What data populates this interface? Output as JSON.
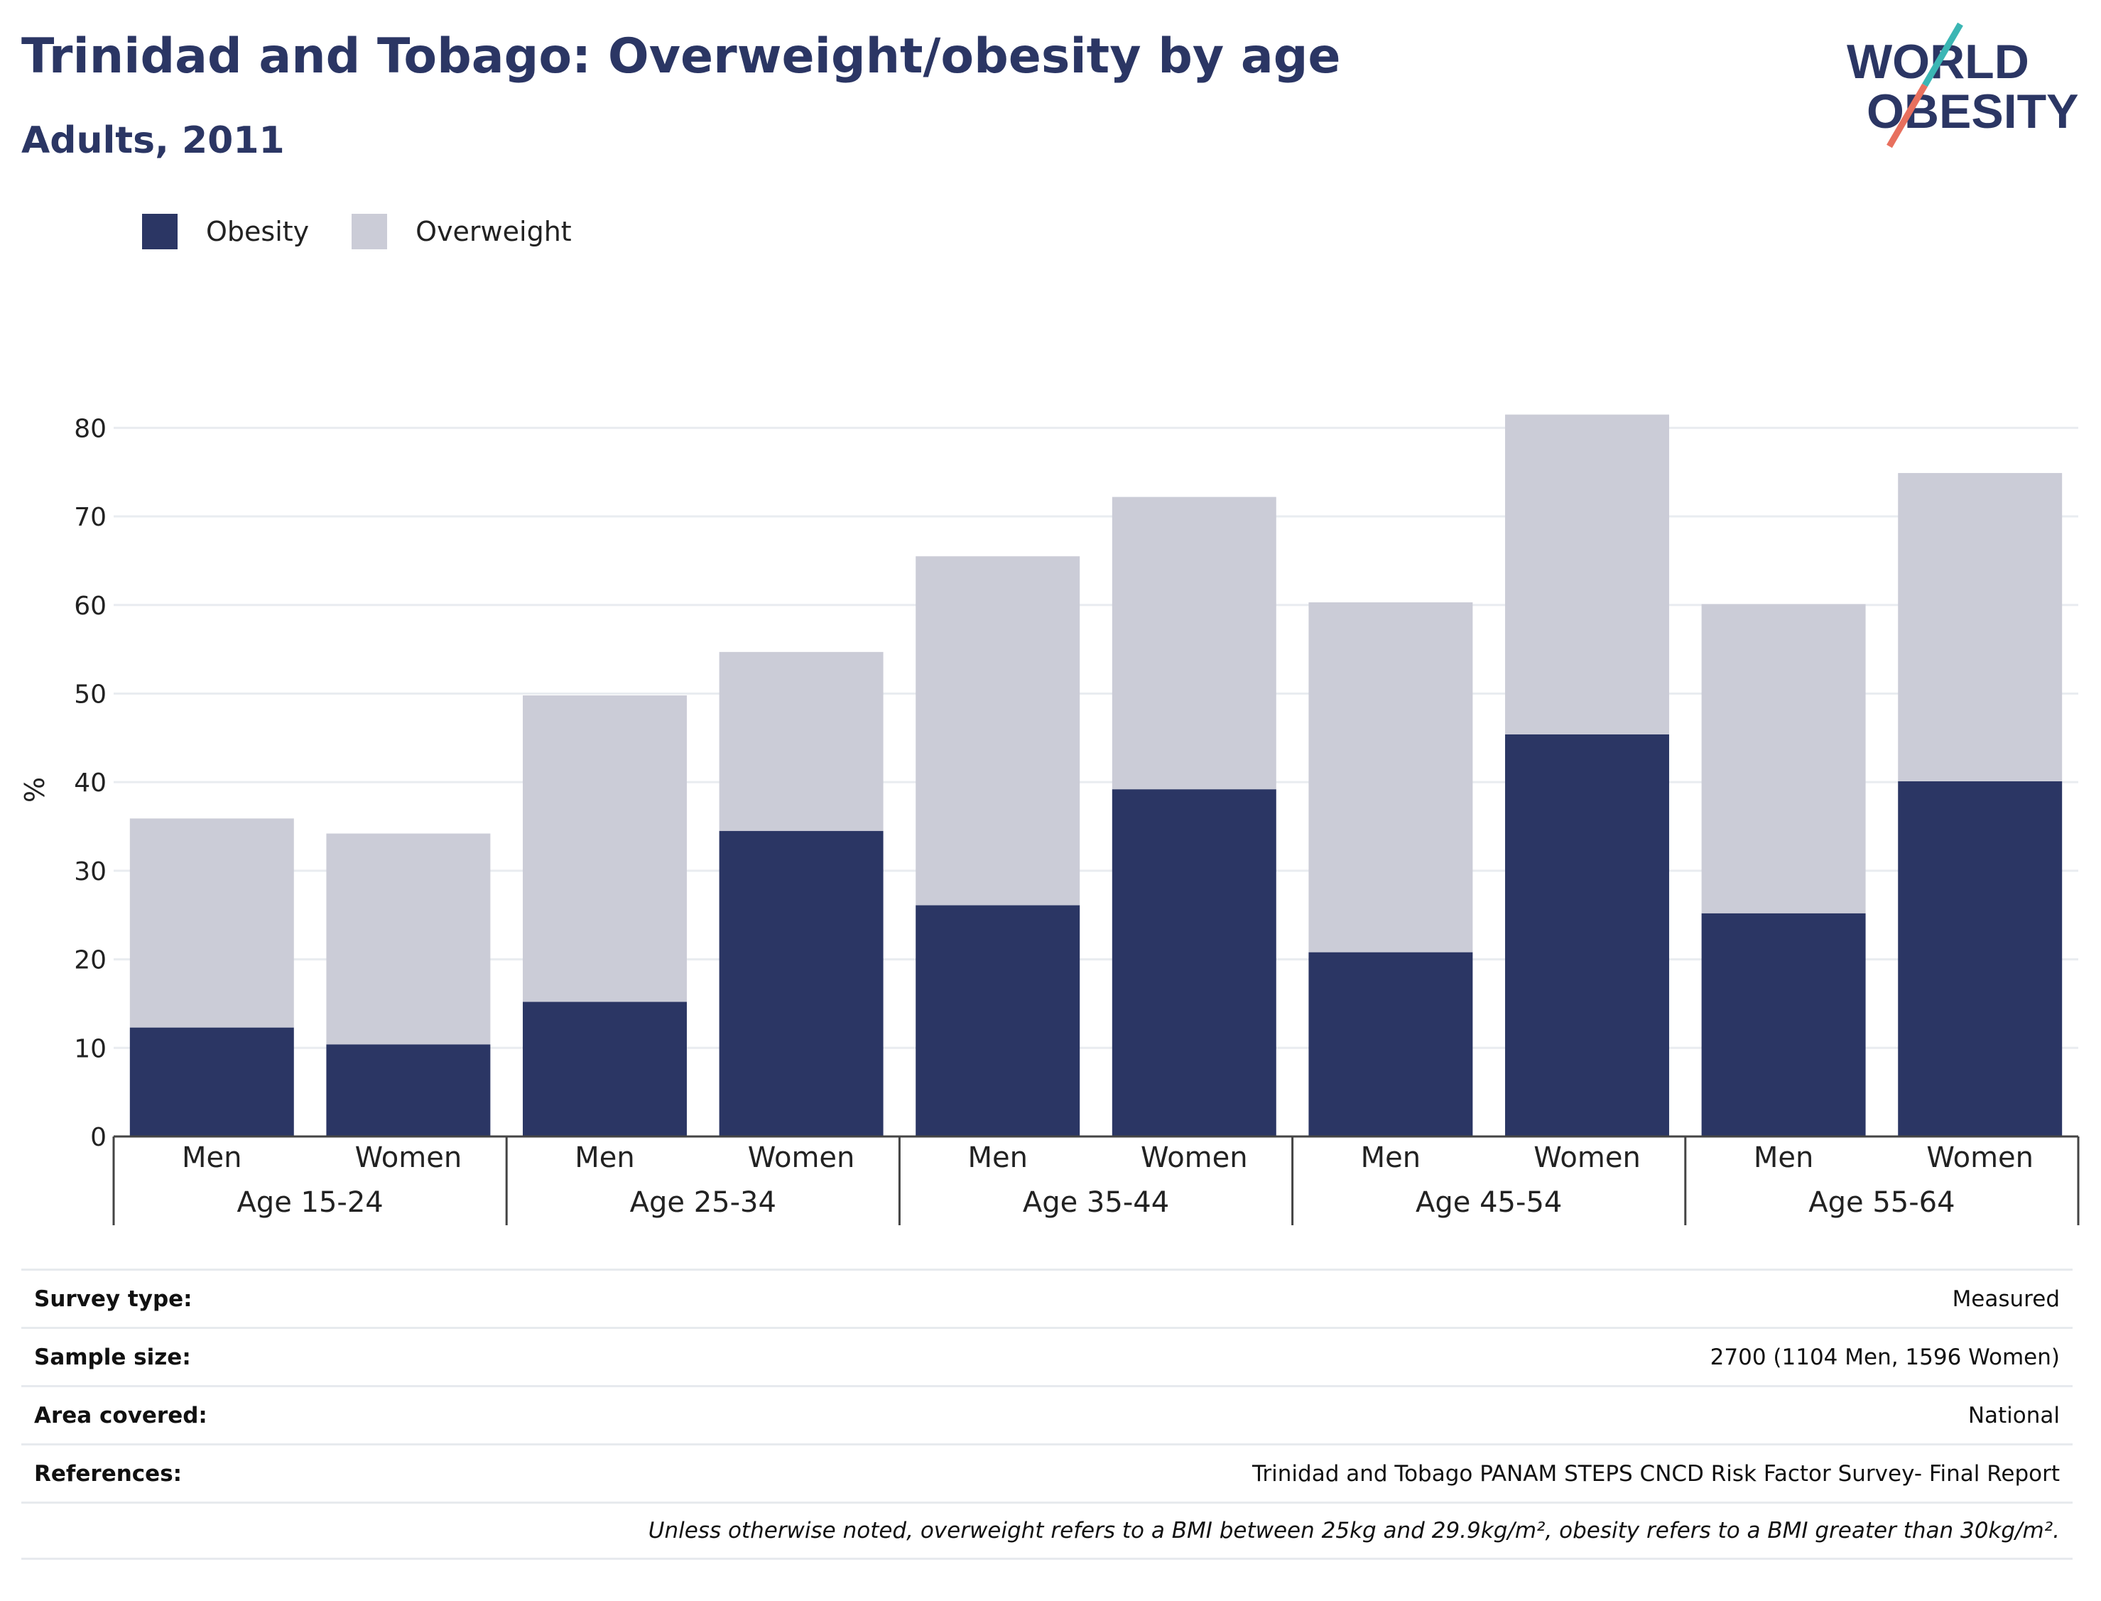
{
  "header": {
    "title": "Trinidad and Tobago: Overweight/obesity by age",
    "subtitle": "Adults, 2011"
  },
  "logo": {
    "line1": "WORLD",
    "line2": "OBESITY",
    "colors": {
      "text": "#2b3664",
      "slash_top": "#3bb6b4",
      "slash_bottom": "#e8705e"
    }
  },
  "legend": {
    "items": [
      {
        "label": "Obesity",
        "color": "#2b3664"
      },
      {
        "label": "Overweight",
        "color": "#cbccd7"
      }
    ]
  },
  "chart_data": {
    "type": "bar",
    "stacked": true,
    "ylabel": "%",
    "ylim": [
      0,
      85
    ],
    "yticks": [
      0,
      10,
      20,
      30,
      40,
      50,
      60,
      70,
      80
    ],
    "grid": true,
    "legend_position": "top-left",
    "groups": [
      "Age 15-24",
      "Age 25-34",
      "Age 35-44",
      "Age 45-54",
      "Age 55-64"
    ],
    "categories": [
      "Men",
      "Women",
      "Men",
      "Women",
      "Men",
      "Women",
      "Men",
      "Women",
      "Men",
      "Women"
    ],
    "series": [
      {
        "name": "Obesity",
        "color": "#2b3664",
        "values": [
          12.3,
          10.4,
          15.2,
          34.5,
          26.1,
          39.2,
          20.8,
          45.4,
          25.2,
          40.1
        ]
      },
      {
        "name": "Overweight",
        "color": "#cbccd7",
        "values": [
          23.6,
          23.8,
          34.6,
          20.2,
          39.4,
          33.0,
          39.5,
          36.1,
          34.9,
          34.8
        ]
      }
    ]
  },
  "info": {
    "rows": [
      {
        "label": "Survey type:",
        "value": "Measured"
      },
      {
        "label": "Sample size:",
        "value": "2700 (1104 Men, 1596 Women)"
      },
      {
        "label": "Area covered:",
        "value": "National"
      },
      {
        "label": "References:",
        "value": "Trinidad and Tobago PANAM STEPS CNCD Risk Factor Survey- Final Report"
      }
    ],
    "note": "Unless otherwise noted, overweight refers to a BMI between 25kg and 29.9kg/m², obesity refers to a BMI greater than 30kg/m²."
  }
}
